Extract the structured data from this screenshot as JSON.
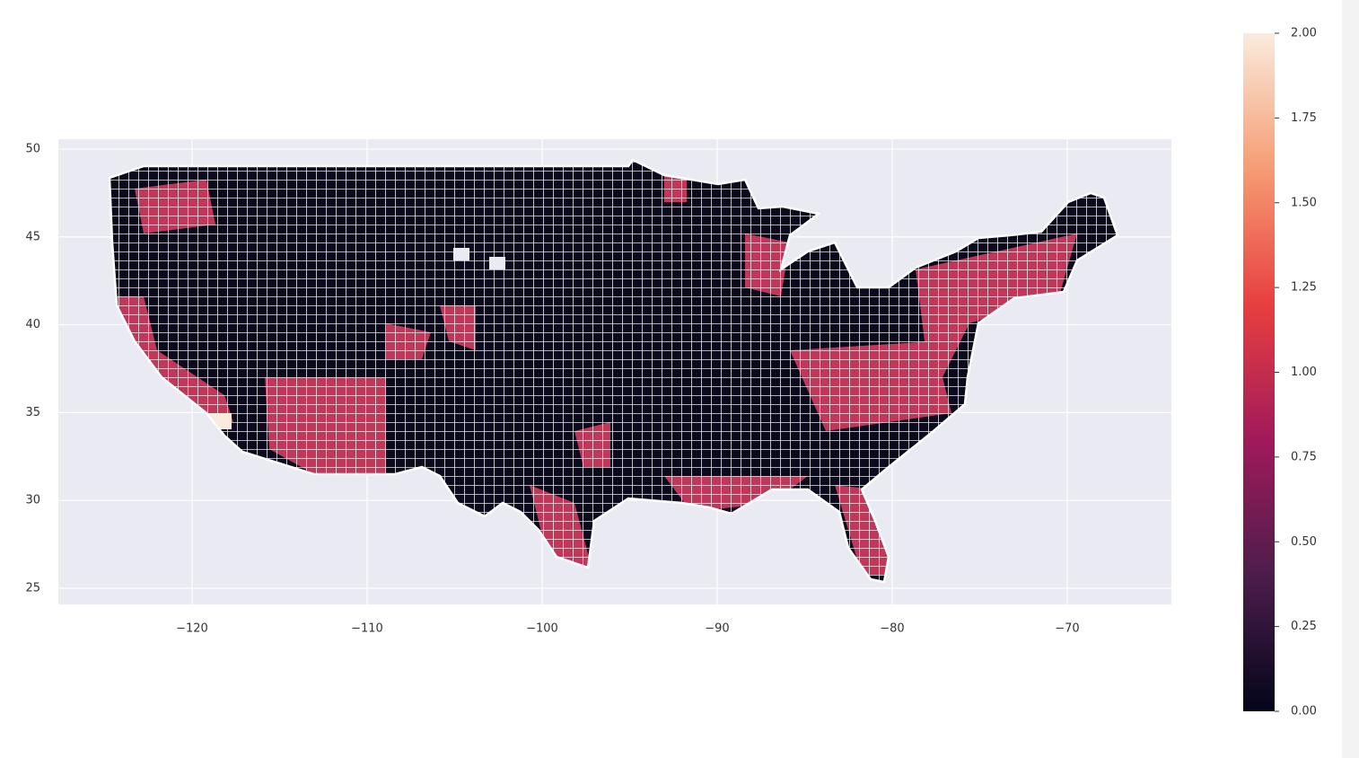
{
  "chart_data": {
    "type": "choropleth",
    "xlim": [
      -127.64,
      -64.05
    ],
    "ylim": [
      24.08,
      50.56
    ],
    "xticks": [
      {
        "value": -120,
        "label": "−120"
      },
      {
        "value": -110,
        "label": "−110"
      },
      {
        "value": -100,
        "label": "−100"
      },
      {
        "value": -90,
        "label": "−90"
      },
      {
        "value": -80,
        "label": "−80"
      },
      {
        "value": -70,
        "label": "−70"
      }
    ],
    "yticks": [
      25,
      30,
      35,
      40,
      45,
      50
    ],
    "grid": true,
    "colorbar": {
      "lim": [
        0,
        2
      ],
      "ticks": [
        {
          "value": 0,
          "label": "0.00"
        },
        {
          "value": 0.25,
          "label": "0.25"
        },
        {
          "value": 0.5,
          "label": "0.50"
        },
        {
          "value": 0.75,
          "label": "0.75"
        },
        {
          "value": 1,
          "label": "1.00"
        },
        {
          "value": 1.25,
          "label": "1.25"
        },
        {
          "value": 1.5,
          "label": "1.50"
        },
        {
          "value": 1.75,
          "label": "1.75"
        },
        {
          "value": 2,
          "label": "2.00"
        }
      ],
      "colors": [
        "#03051a",
        "#4c1d4b",
        "#a11a5b",
        "#e83f3f",
        "#f69c73",
        "#faebdd"
      ]
    }
  }
}
